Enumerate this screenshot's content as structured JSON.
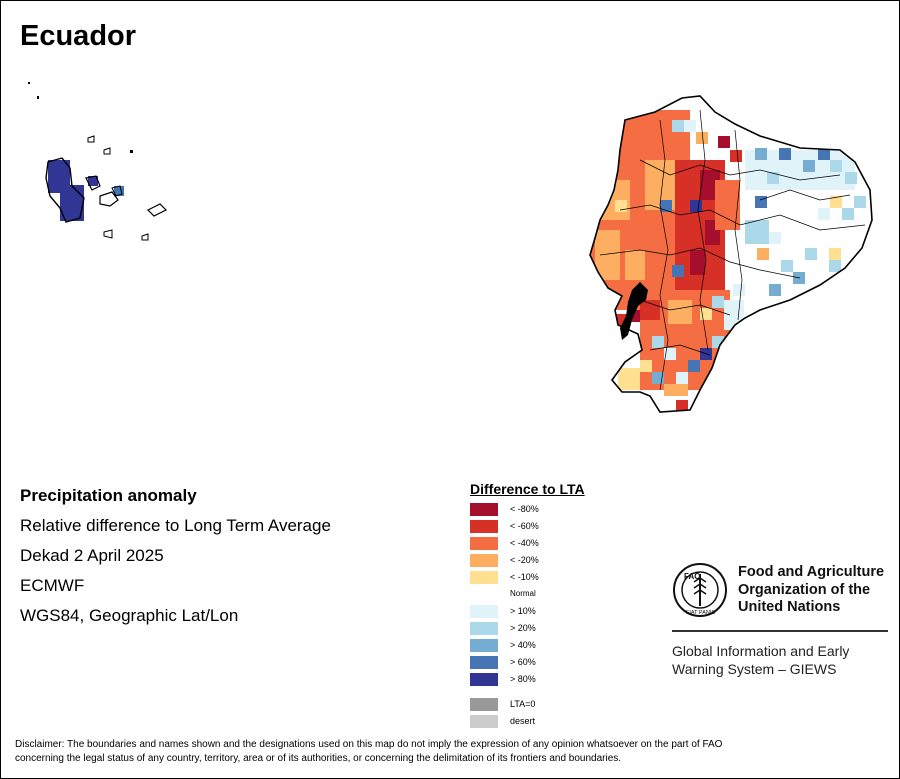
{
  "map": {
    "title": "Ecuador",
    "colors": {
      "lt80": "#a50f2d",
      "lt60": "#d73027",
      "lt40": "#f46d43",
      "lt20": "#fdae61",
      "lt10": "#fee090",
      "normal": "#ffffff",
      "gt10": "#e0f3f8",
      "gt20": "#abd9e9",
      "gt40": "#74add1",
      "gt60": "#4575b4",
      "gt80": "#313695",
      "lta0": "#999999",
      "desert": "#cccccc"
    }
  },
  "info": {
    "heading": "Precipitation anomaly",
    "line1": "Relative difference to Long Term Average",
    "line2": "Dekad 2 April 2025",
    "line3": "ECMWF",
    "line4": "WGS84, Geographic Lat/Lon"
  },
  "legend": {
    "title": "Difference to LTA",
    "items": [
      {
        "label": "< -80%",
        "color": "#a50f2d"
      },
      {
        "label": "< -60%",
        "color": "#d73027"
      },
      {
        "label": "< -40%",
        "color": "#f46d43"
      },
      {
        "label": "< -20%",
        "color": "#fdae61"
      },
      {
        "label": "< -10%",
        "color": "#fee090"
      },
      {
        "label": "Normal",
        "color": "#ffffff"
      },
      {
        "label": "> 10%",
        "color": "#e0f3f8"
      },
      {
        "label": "> 20%",
        "color": "#abd9e9"
      },
      {
        "label": "> 40%",
        "color": "#74add1"
      },
      {
        "label": "> 60%",
        "color": "#4575b4"
      },
      {
        "label": "> 80%",
        "color": "#313695"
      }
    ],
    "extra": [
      {
        "label": "LTA=0",
        "color": "#999999"
      },
      {
        "label": "desert",
        "color": "#cccccc"
      }
    ]
  },
  "fao": {
    "logo_icon": "fao-emblem-icon",
    "name_line1": "Food and Agriculture",
    "name_line2": "Organization of the",
    "name_line3": "United Nations",
    "logo_letters": "FAO",
    "logo_motto": "FIAT PANIS",
    "giews_line1": "Global Information and Early",
    "giews_line2": "Warning System – GIEWS"
  },
  "disclaimer": {
    "line1": "Disclaimer: The boundaries and names shown and the designations used on this map do not imply the expression of any opinion whatsoever on the part of FAO",
    "line2": "concerning the legal status of any country, territory, area or of its authorities, or concerning the delimitation of its frontiers and boundaries."
  }
}
